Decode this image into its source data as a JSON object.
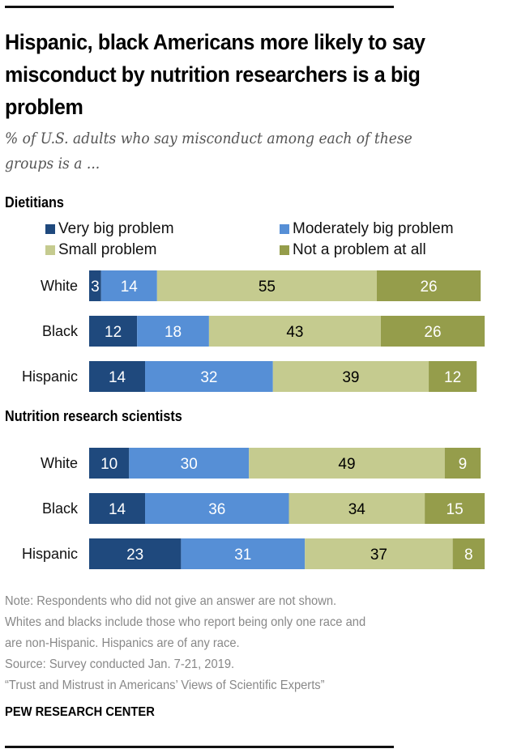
{
  "title": "Hispanic, black Americans more likely to say misconduct by nutrition researchers is a big problem",
  "subtitle": "% of U.S. adults who say misconduct among each of these groups is a ...",
  "legend": [
    {
      "label": "Very big problem",
      "color": "#1f497d"
    },
    {
      "label": "Moderately big problem",
      "color": "#568fd6"
    },
    {
      "label": "Small problem",
      "color": "#c5cb8f"
    },
    {
      "label": "Not a problem at all",
      "color": "#959d4b"
    }
  ],
  "chart_data": [
    {
      "type": "bar",
      "orientation": "horizontal-stacked",
      "title": "Dietitians",
      "categories": [
        "White",
        "Black",
        "Hispanic"
      ],
      "series": [
        {
          "name": "Very big problem",
          "values": [
            3,
            12,
            14
          ]
        },
        {
          "name": "Moderately big problem",
          "values": [
            14,
            18,
            32
          ]
        },
        {
          "name": "Small problem",
          "values": [
            55,
            43,
            39
          ]
        },
        {
          "name": "Not a problem at all",
          "values": [
            26,
            26,
            12
          ]
        }
      ],
      "xlim": [
        0,
        100
      ],
      "grid": false,
      "legend_position": "top"
    },
    {
      "type": "bar",
      "orientation": "horizontal-stacked",
      "title": "Nutrition research scientists",
      "categories": [
        "White",
        "Black",
        "Hispanic"
      ],
      "series": [
        {
          "name": "Very big problem",
          "values": [
            10,
            14,
            23
          ]
        },
        {
          "name": "Moderately big problem",
          "values": [
            30,
            36,
            31
          ]
        },
        {
          "name": "Small problem",
          "values": [
            49,
            34,
            37
          ]
        },
        {
          "name": "Not a problem at all",
          "values": [
            9,
            15,
            8
          ]
        }
      ],
      "xlim": [
        0,
        100
      ],
      "grid": false
    }
  ],
  "label_colors": [
    "#ffffff",
    "#ffffff",
    "#000000",
    "#ffffff"
  ],
  "notes": [
    "Note: Respondents who did not give an answer are not shown.",
    "Whites and blacks include those who report being only one race and",
    "are non-Hispanic. Hispanics are of any race.",
    "Source: Survey conducted Jan. 7-21, 2019.",
    "“Trust and Mistrust in Americans’ Views of Scientific Experts”"
  ],
  "brand": "PEW RESEARCH CENTER"
}
